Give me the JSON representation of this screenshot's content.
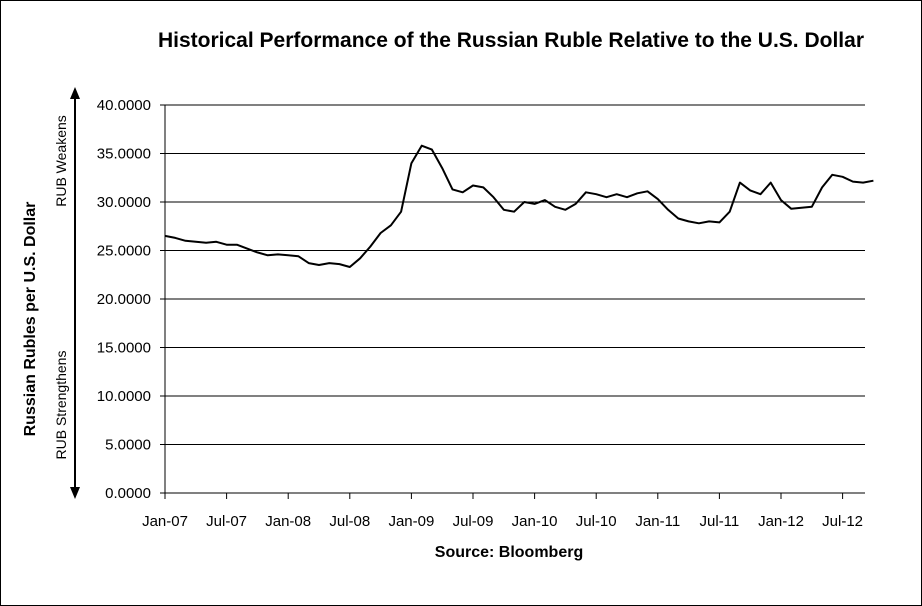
{
  "title": "Historical Performance of the Russian Ruble Relative to the U.S. Dollar",
  "source": "Source: Bloomberg",
  "ylabel": "Russian Rubles per U.S. Dollar",
  "annotation_top": "RUB Weakens",
  "annotation_bottom": "RUB Strengthens",
  "chart_data": {
    "type": "line",
    "title": "Historical Performance of the Russian Ruble Relative to the U.S. Dollar",
    "xlabel": "Source: Bloomberg",
    "ylabel": "Russian Rubles per U.S. Dollar",
    "ylim": [
      0,
      40
    ],
    "y_ticks": [
      "0.0000",
      "5.0000",
      "10.0000",
      "15.0000",
      "20.0000",
      "25.0000",
      "30.0000",
      "35.0000",
      "40.0000"
    ],
    "x_ticks": [
      "Jan-07",
      "Jul-07",
      "Jan-08",
      "Jul-08",
      "Jan-09",
      "Jul-09",
      "Jan-10",
      "Jul-10",
      "Jan-11",
      "Jul-11",
      "Jan-12",
      "Jul-12"
    ],
    "xlim": [
      "Jan-07",
      "Oct-12"
    ],
    "grid": "horizontal",
    "legend": "none",
    "line_color": "#000000",
    "series": [
      {
        "x": [
          "Jan-07",
          "Feb-07",
          "Mar-07",
          "Apr-07",
          "May-07",
          "Jun-07",
          "Jul-07",
          "Aug-07",
          "Sep-07",
          "Oct-07",
          "Nov-07",
          "Dec-07",
          "Jan-08",
          "Feb-08",
          "Mar-08",
          "Apr-08",
          "May-08",
          "Jun-08",
          "Jul-08",
          "Aug-08",
          "Sep-08",
          "Oct-08",
          "Nov-08",
          "Dec-08",
          "Jan-09",
          "Feb-09",
          "Mar-09",
          "Apr-09",
          "May-09",
          "Jun-09",
          "Jul-09",
          "Aug-09",
          "Sep-09",
          "Oct-09",
          "Nov-09",
          "Dec-09",
          "Jan-10",
          "Feb-10",
          "Mar-10",
          "Apr-10",
          "May-10",
          "Jun-10",
          "Jul-10",
          "Aug-10",
          "Sep-10",
          "Oct-10",
          "Nov-10",
          "Dec-10",
          "Jan-11",
          "Feb-11",
          "Mar-11",
          "Apr-11",
          "May-11",
          "Jun-11",
          "Jul-11",
          "Aug-11",
          "Sep-11",
          "Oct-11",
          "Nov-11",
          "Dec-11",
          "Jan-12",
          "Feb-12",
          "Mar-12",
          "Apr-12",
          "May-12",
          "Jun-12",
          "Jul-12",
          "Aug-12",
          "Sep-12",
          "Oct-12"
        ],
        "values": [
          26.5,
          26.3,
          26.0,
          25.9,
          25.8,
          25.9,
          25.6,
          25.6,
          25.2,
          24.8,
          24.5,
          24.6,
          24.5,
          24.4,
          23.7,
          23.5,
          23.7,
          23.6,
          23.3,
          24.2,
          25.4,
          26.8,
          27.6,
          29.0,
          34.0,
          35.8,
          35.4,
          33.5,
          31.3,
          31.0,
          31.7,
          31.5,
          30.5,
          29.2,
          29.0,
          30.0,
          29.8,
          30.2,
          29.5,
          29.2,
          29.8,
          31.0,
          30.8,
          30.5,
          30.8,
          30.5,
          30.9,
          31.1,
          30.3,
          29.2,
          28.3,
          28.0,
          27.8,
          28.0,
          27.9,
          29.0,
          32.0,
          31.2,
          30.8,
          32.0,
          30.2,
          29.3,
          29.4,
          29.5,
          31.5,
          32.8,
          32.6,
          32.1,
          32.0,
          32.2
        ]
      }
    ]
  }
}
